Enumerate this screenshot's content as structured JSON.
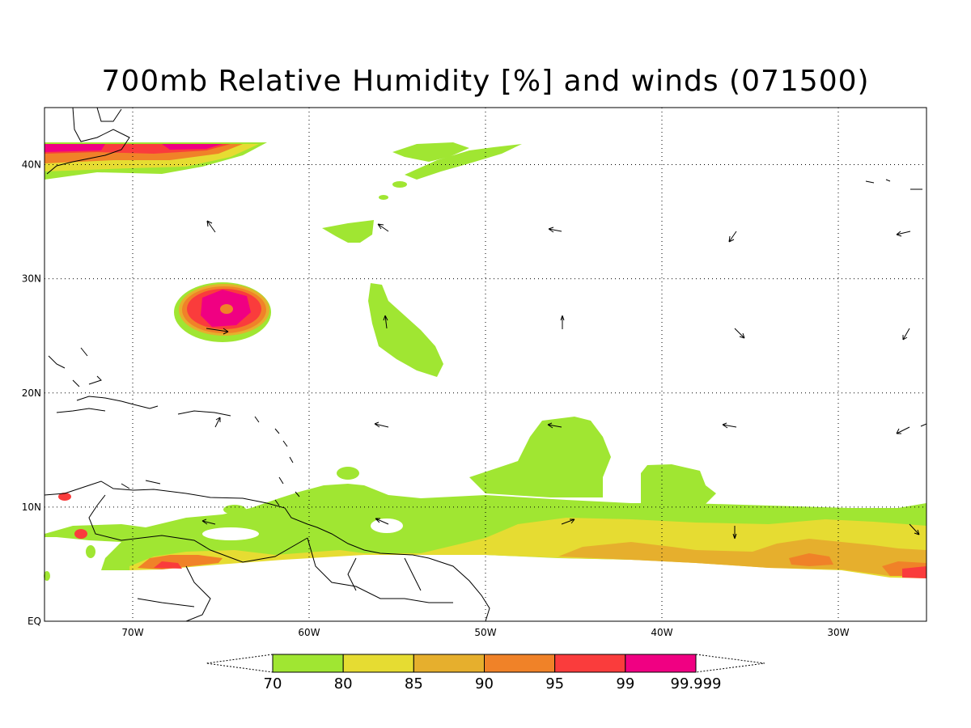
{
  "title": "700mb Relative Humidity [%] and winds (071500)",
  "map": {
    "lon_range": [
      -75,
      -25
    ],
    "lat_range": [
      0,
      45
    ],
    "lon_ticks": [
      {
        "value": -70,
        "label": "70W"
      },
      {
        "value": -60,
        "label": "60W"
      },
      {
        "value": -50,
        "label": "50W"
      },
      {
        "value": -40,
        "label": "40W"
      },
      {
        "value": -30,
        "label": "30W"
      }
    ],
    "lat_ticks": [
      {
        "value": 0,
        "label": "EQ"
      },
      {
        "value": 10,
        "label": "10N"
      },
      {
        "value": 20,
        "label": "20N"
      },
      {
        "value": 30,
        "label": "30N"
      },
      {
        "value": 40,
        "label": "40N"
      }
    ],
    "gridlines": true
  },
  "colorbar": {
    "levels": [
      "70",
      "80",
      "85",
      "90",
      "95",
      "99",
      "99.999"
    ],
    "colors": [
      "#a0e632",
      "#e6dc32",
      "#e6af2d",
      "#f08228",
      "#fa3c3c",
      "#f00082"
    ]
  }
}
